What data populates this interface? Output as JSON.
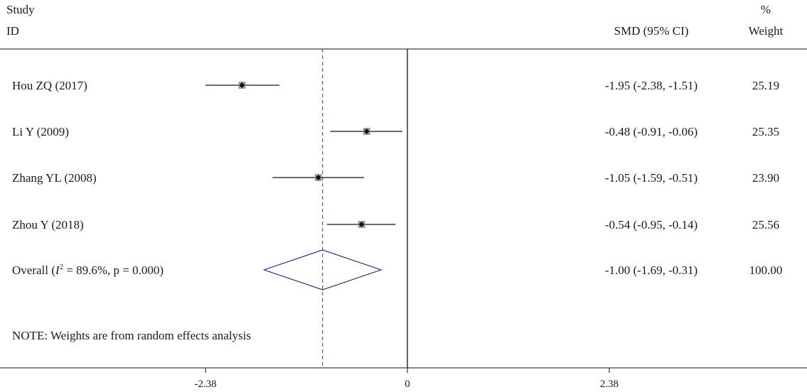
{
  "header": {
    "study_line1": "Study",
    "study_line2": "ID",
    "ci_label": "SMD (95% CI)",
    "weight_line1": "%",
    "weight_line2": "Weight"
  },
  "chart_data": {
    "type": "forest",
    "xlim": [
      -4.2,
      4.2
    ],
    "xticks": [
      {
        "value": -2.38,
        "label": "-2.38"
      },
      {
        "value": 0,
        "label": "0"
      },
      {
        "value": 2.38,
        "label": "2.38"
      }
    ],
    "null_line": 0,
    "overall_reference_line": -1.0,
    "studies": [
      {
        "label": "Hou ZQ (2017)",
        "smd": -1.95,
        "lower": -2.38,
        "upper": -1.51,
        "ci_text": "-1.95 (-2.38, -1.51)",
        "weight": 25.19,
        "weight_text": "25.19"
      },
      {
        "label": "Li Y (2009)",
        "smd": -0.48,
        "lower": -0.91,
        "upper": -0.06,
        "ci_text": "-0.48 (-0.91, -0.06)",
        "weight": 25.35,
        "weight_text": "25.35"
      },
      {
        "label": "Zhang YL (2008)",
        "smd": -1.05,
        "lower": -1.59,
        "upper": -0.51,
        "ci_text": "-1.05 (-1.59, -0.51)",
        "weight": 23.9,
        "weight_text": "23.90"
      },
      {
        "label": "Zhou Y (2018)",
        "smd": -0.54,
        "lower": -0.95,
        "upper": -0.14,
        "ci_text": "-0.54 (-0.95, -0.14)",
        "weight": 25.56,
        "weight_text": "25.56"
      }
    ],
    "overall": {
      "label_prefix": "Overall (",
      "label_i": "I",
      "label_sup": "2",
      "label_suffix": " = 89.6%, p = 0.000)",
      "smd": -1.0,
      "lower": -1.69,
      "upper": -0.31,
      "ci_text": "-1.00 (-1.69, -0.31)",
      "weight_text": "100.00"
    },
    "note": "NOTE: Weights are from random effects analysis",
    "colors": {
      "diamond_stroke": "#1f1f6e",
      "reference_line": "#b22234",
      "weight_box": "#9e9e9e",
      "point": "#111111",
      "axis": "#111111"
    }
  }
}
